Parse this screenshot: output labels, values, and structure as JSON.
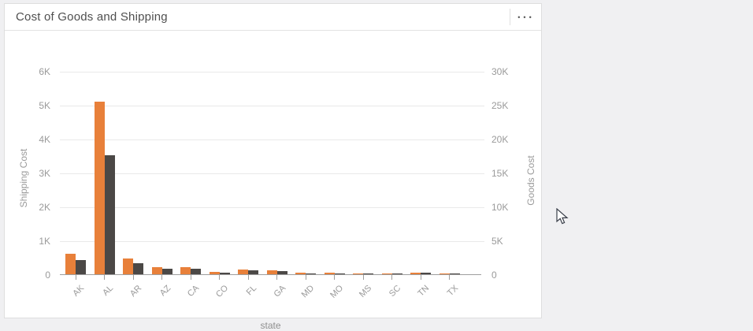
{
  "card": {
    "title": "Cost of Goods and Shipping",
    "menu_icon": "ellipsis-icon",
    "menu_glyph": "■ ■ ■"
  },
  "colors": {
    "shipping_bar": "#e8803a",
    "goods_bar": "#4b4846",
    "gridline": "#e9e9e9",
    "axis_line": "#9e9e9e",
    "tick_text": "#9a9a9a",
    "title_text": "#4f4f4f",
    "card_bg": "#ffffff",
    "page_bg": "#f0f0f2"
  },
  "chart_data": {
    "type": "bar",
    "title": "Cost of Goods and Shipping",
    "categories": [
      "AK",
      "AL",
      "AR",
      "AZ",
      "CA",
      "CO",
      "FL",
      "GA",
      "MD",
      "MO",
      "MS",
      "SC",
      "TN",
      "TX"
    ],
    "series": [
      {
        "name": "Shipping Cost",
        "axis": "left",
        "color": "#e8803a",
        "values": [
          600,
          5100,
          470,
          200,
          220,
          70,
          130,
          120,
          50,
          50,
          10,
          25,
          55,
          30
        ]
      },
      {
        "name": "Goods Cost",
        "axis": "right",
        "color": "#4b4846",
        "values": [
          2100,
          17600,
          1650,
          800,
          850,
          250,
          550,
          450,
          150,
          150,
          50,
          100,
          250,
          100
        ]
      }
    ],
    "xlabel": "state",
    "ylabel_left": "Shipping Cost",
    "ylabel_right": "Goods Cost",
    "y_left": {
      "min": 0,
      "max": 6000,
      "tick_values": [
        0,
        1000,
        2000,
        3000,
        4000,
        5000,
        6000
      ],
      "tick_labels": [
        "0",
        "1K",
        "2K",
        "3K",
        "4K",
        "5K",
        "6K"
      ]
    },
    "y_right": {
      "min": 0,
      "max": 30000,
      "tick_values": [
        0,
        5000,
        10000,
        15000,
        20000,
        25000,
        30000
      ],
      "tick_labels": [
        "0",
        "5K",
        "10K",
        "15K",
        "20K",
        "25K",
        "30K"
      ]
    },
    "grid": true,
    "legend": "none"
  }
}
